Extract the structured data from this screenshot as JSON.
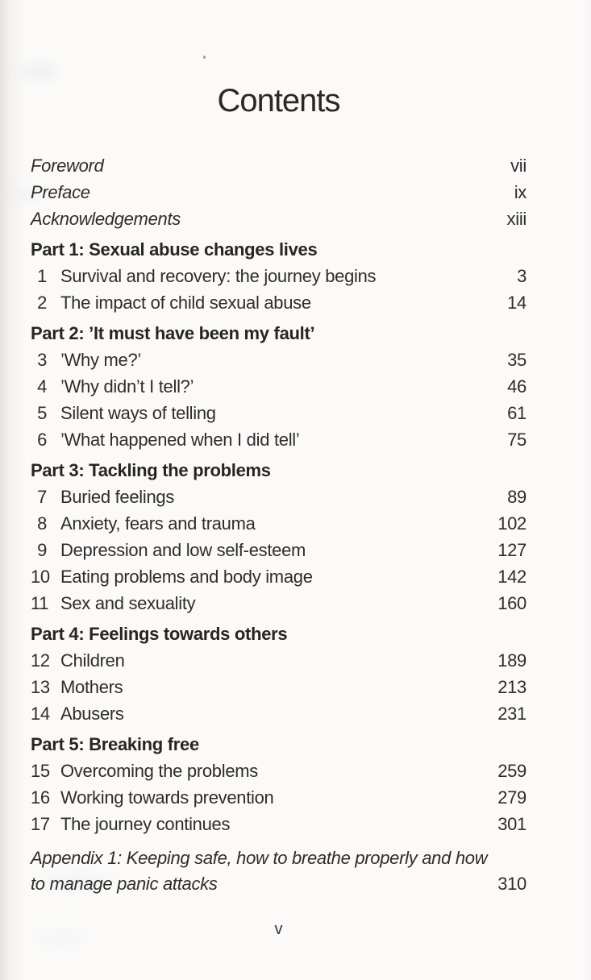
{
  "document": {
    "title": "Contents",
    "folio": "v",
    "ink_color": "#2e2d2b",
    "paper_color": "#fbfaf9"
  },
  "front_matter": [
    {
      "label": "Foreword",
      "page": "vii"
    },
    {
      "label": "Preface",
      "page": "ix"
    },
    {
      "label": "Acknowledgements",
      "page": "xiii"
    }
  ],
  "parts": [
    {
      "heading": "Part 1: Sexual abuse changes lives",
      "chapters": [
        {
          "num": "1",
          "title": "Survival and recovery: the journey begins",
          "page": "3"
        },
        {
          "num": "2",
          "title": "The impact of child sexual abuse",
          "page": "14"
        }
      ]
    },
    {
      "heading": "Part 2: ’It must have been my fault’",
      "chapters": [
        {
          "num": "3",
          "title": "’Why me?’",
          "page": "35"
        },
        {
          "num": "4",
          "title": "’Why didn’t I tell?’",
          "page": "46"
        },
        {
          "num": "5",
          "title": "Silent ways of telling",
          "page": "61"
        },
        {
          "num": "6",
          "title": "’What happened when I did tell’",
          "page": "75"
        }
      ]
    },
    {
      "heading": "Part 3: Tackling the problems",
      "chapters": [
        {
          "num": "7",
          "title": "Buried feelings",
          "page": "89"
        },
        {
          "num": "8",
          "title": "Anxiety, fears and trauma",
          "page": "102"
        },
        {
          "num": "9",
          "title": "Depression and low self-esteem",
          "page": "127"
        },
        {
          "num": "10",
          "title": "Eating problems and body image",
          "page": "142"
        },
        {
          "num": "11",
          "title": "Sex and sexuality",
          "page": "160"
        }
      ]
    },
    {
      "heading": "Part 4: Feelings towards others",
      "chapters": [
        {
          "num": "12",
          "title": "Children",
          "page": "189"
        },
        {
          "num": "13",
          "title": "Mothers",
          "page": "213"
        },
        {
          "num": "14",
          "title": "Abusers",
          "page": "231"
        }
      ]
    },
    {
      "heading": "Part 5: Breaking free",
      "chapters": [
        {
          "num": "15",
          "title": "Overcoming the problems",
          "page": "259"
        },
        {
          "num": "16",
          "title": "Working towards prevention",
          "page": "279"
        },
        {
          "num": "17",
          "title": "The journey continues",
          "page": "301"
        }
      ]
    }
  ],
  "appendices": [
    {
      "label": "Appendix 1: Keeping safe, how to breathe properly and how to manage panic attacks",
      "page": "310"
    }
  ]
}
